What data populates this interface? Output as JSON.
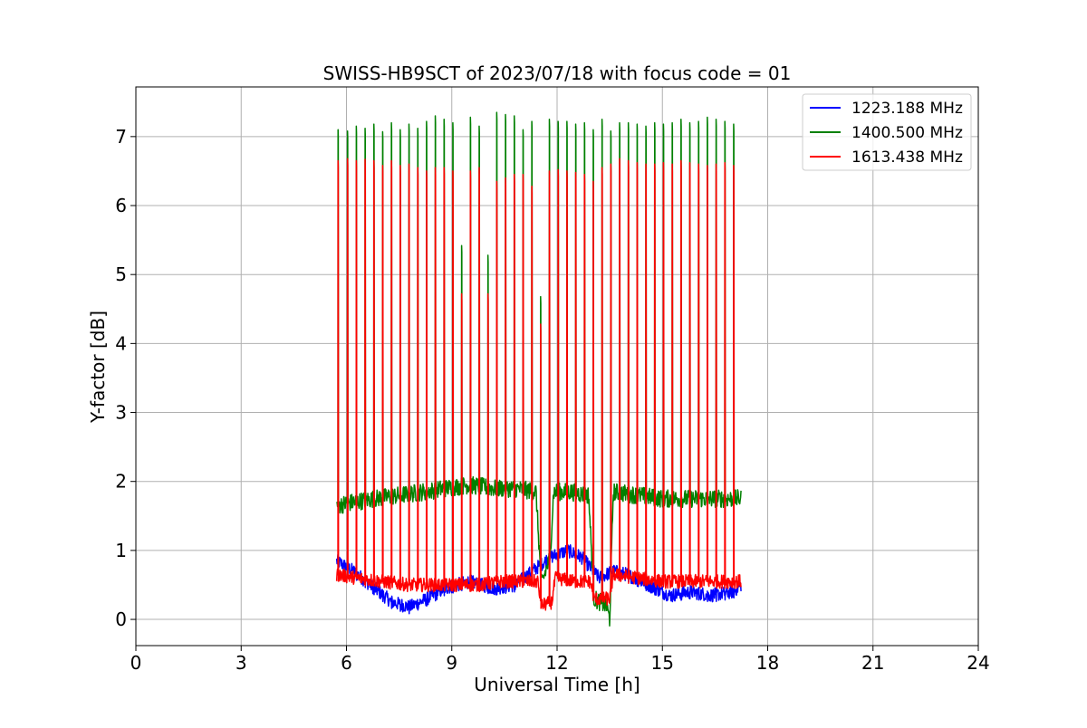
{
  "chart_data": {
    "type": "line",
    "title": "SWISS-HB9SCT of 2023/07/18 with focus code = 01",
    "xlabel": "Universal Time [h]",
    "ylabel": "Y-factor [dB]",
    "xlim": [
      0,
      24
    ],
    "ylim": [
      -0.38,
      7.72
    ],
    "xticks": [
      0,
      3,
      6,
      9,
      12,
      15,
      18,
      21,
      24
    ],
    "yticks": [
      0,
      1,
      2,
      3,
      4,
      5,
      6,
      7
    ],
    "grid": true,
    "legend_position": "top-right",
    "series": [
      {
        "name": "1223.188 MHz",
        "color": "#0000ff",
        "baseline": [
          [
            5.72,
            0.85
          ],
          [
            6.2,
            0.7
          ],
          [
            6.8,
            0.45
          ],
          [
            7.3,
            0.25
          ],
          [
            7.8,
            0.18
          ],
          [
            8.3,
            0.3
          ],
          [
            8.8,
            0.45
          ],
          [
            9.5,
            0.55
          ],
          [
            10.2,
            0.45
          ],
          [
            10.8,
            0.5
          ],
          [
            11.3,
            0.7
          ],
          [
            11.8,
            0.9
          ],
          [
            12.3,
            1.0
          ],
          [
            12.7,
            0.9
          ],
          [
            13.2,
            0.6
          ],
          [
            13.6,
            0.7
          ],
          [
            14.0,
            0.65
          ],
          [
            14.6,
            0.5
          ],
          [
            15.2,
            0.35
          ],
          [
            15.8,
            0.4
          ],
          [
            16.4,
            0.35
          ],
          [
            17.0,
            0.4
          ],
          [
            17.25,
            0.5
          ]
        ]
      },
      {
        "name": "1400.500 MHz",
        "color": "#008000",
        "baseline": [
          [
            5.72,
            1.65
          ],
          [
            6.2,
            1.7
          ],
          [
            6.8,
            1.75
          ],
          [
            7.5,
            1.8
          ],
          [
            8.2,
            1.85
          ],
          [
            8.8,
            1.9
          ],
          [
            9.5,
            1.95
          ],
          [
            10.2,
            1.9
          ],
          [
            10.8,
            1.9
          ],
          [
            11.4,
            1.85
          ],
          [
            11.55,
            0.5
          ],
          [
            11.8,
            0.9
          ],
          [
            11.9,
            1.85
          ],
          [
            12.4,
            1.85
          ],
          [
            12.9,
            1.8
          ],
          [
            13.05,
            0.3
          ],
          [
            13.4,
            0.2
          ],
          [
            13.5,
            0.0
          ],
          [
            13.6,
            1.85
          ],
          [
            14.3,
            1.8
          ],
          [
            15.0,
            1.75
          ],
          [
            15.8,
            1.75
          ],
          [
            16.5,
            1.75
          ],
          [
            17.25,
            1.75
          ]
        ]
      },
      {
        "name": "1613.438 MHz",
        "color": "#ff0000",
        "baseline": [
          [
            5.72,
            0.65
          ],
          [
            6.3,
            0.6
          ],
          [
            7.0,
            0.55
          ],
          [
            7.8,
            0.5
          ],
          [
            8.5,
            0.5
          ],
          [
            9.2,
            0.5
          ],
          [
            9.8,
            0.5
          ],
          [
            10.4,
            0.55
          ],
          [
            11.0,
            0.55
          ],
          [
            11.45,
            0.55
          ],
          [
            11.55,
            0.2
          ],
          [
            11.85,
            0.25
          ],
          [
            11.95,
            0.6
          ],
          [
            12.5,
            0.55
          ],
          [
            12.95,
            0.55
          ],
          [
            13.05,
            0.3
          ],
          [
            13.5,
            0.3
          ],
          [
            13.6,
            0.65
          ],
          [
            14.3,
            0.6
          ],
          [
            15.0,
            0.55
          ],
          [
            15.8,
            0.55
          ],
          [
            16.5,
            0.55
          ],
          [
            17.25,
            0.55
          ]
        ]
      }
    ],
    "peaks": {
      "x": [
        5.76,
        6.03,
        6.28,
        6.53,
        6.78,
        7.03,
        7.28,
        7.53,
        7.78,
        8.03,
        8.28,
        8.53,
        8.78,
        9.03,
        9.28,
        9.53,
        9.78,
        10.03,
        10.28,
        10.53,
        10.78,
        11.03,
        11.28,
        11.53,
        11.78,
        12.03,
        12.28,
        12.53,
        12.78,
        13.03,
        13.28,
        13.53,
        13.78,
        14.03,
        14.28,
        14.53,
        14.78,
        15.03,
        15.28,
        15.53,
        15.78,
        16.03,
        16.28,
        16.53,
        16.78,
        17.03
      ],
      "green": [
        7.1,
        7.08,
        7.15,
        7.12,
        7.18,
        7.07,
        7.2,
        7.1,
        7.18,
        7.12,
        7.22,
        7.3,
        7.25,
        7.2,
        5.42,
        7.28,
        7.15,
        5.28,
        7.35,
        7.32,
        7.3,
        7.1,
        7.22,
        4.68,
        7.25,
        7.22,
        7.22,
        7.18,
        7.2,
        7.1,
        7.25,
        7.08,
        7.2,
        7.2,
        7.18,
        7.15,
        7.2,
        7.18,
        7.2,
        7.25,
        7.2,
        7.22,
        7.28,
        7.25,
        7.22,
        7.18
      ],
      "red": [
        6.65,
        6.68,
        6.65,
        6.67,
        6.65,
        6.58,
        6.65,
        6.58,
        6.6,
        6.55,
        6.5,
        6.55,
        6.55,
        6.5,
        4.72,
        6.5,
        6.55,
        4.72,
        6.35,
        6.4,
        6.45,
        6.45,
        6.28,
        4.28,
        6.5,
        6.52,
        6.5,
        6.48,
        6.45,
        6.35,
        6.55,
        6.6,
        6.68,
        6.65,
        6.62,
        6.6,
        6.6,
        6.62,
        6.6,
        6.65,
        6.62,
        6.6,
        6.58,
        6.6,
        6.62,
        6.58
      ]
    }
  }
}
